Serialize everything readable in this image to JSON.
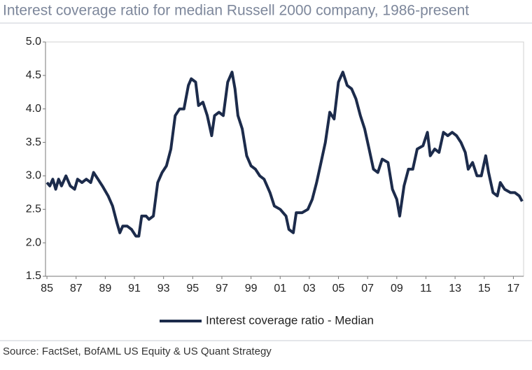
{
  "chart_data": {
    "type": "line",
    "title": "Interest coverage ratio for median Russell 2000 company, 1986-present",
    "source": "Source: FactSet, BofAML US Equity & US Quant Strategy",
    "x": [
      1985.0,
      1985.2,
      1985.4,
      1985.6,
      1985.8,
      1986.0,
      1986.3,
      1986.6,
      1986.9,
      1987.1,
      1987.4,
      1987.7,
      1988.0,
      1988.2,
      1988.5,
      1988.8,
      1989.2,
      1989.5,
      1989.8,
      1990.0,
      1990.2,
      1990.5,
      1990.8,
      1991.1,
      1991.3,
      1991.5,
      1991.8,
      1992.0,
      1992.3,
      1992.6,
      1992.9,
      1993.2,
      1993.5,
      1993.8,
      1994.1,
      1994.4,
      1994.7,
      1994.9,
      1995.2,
      1995.4,
      1995.7,
      1996.0,
      1996.3,
      1996.5,
      1996.8,
      1997.1,
      1997.4,
      1997.7,
      1997.9,
      1998.1,
      1998.4,
      1998.7,
      1999.0,
      1999.3,
      1999.6,
      1999.9,
      2000.3,
      2000.6,
      2001.0,
      2001.4,
      2001.6,
      2001.9,
      2002.1,
      2002.5,
      2002.9,
      2003.2,
      2003.5,
      2003.8,
      2004.1,
      2004.4,
      2004.7,
      2005.0,
      2005.3,
      2005.6,
      2005.9,
      2006.2,
      2006.5,
      2006.8,
      2007.1,
      2007.4,
      2007.7,
      2008.0,
      2008.4,
      2008.7,
      2009.0,
      2009.2,
      2009.5,
      2009.8,
      2010.1,
      2010.4,
      2010.8,
      2011.1,
      2011.3,
      2011.6,
      2011.9,
      2012.2,
      2012.5,
      2012.8,
      2013.1,
      2013.4,
      2013.7,
      2013.9,
      2014.2,
      2014.5,
      2014.8,
      2015.1,
      2015.3,
      2015.6,
      2015.9,
      2016.1,
      2016.4,
      2016.8,
      2017.1,
      2017.4,
      2017.6
    ],
    "series": [
      {
        "name": "Interest coverage ratio - Median",
        "color": "#1c2b4b",
        "values": [
          2.9,
          2.85,
          2.95,
          2.8,
          2.95,
          2.85,
          3.0,
          2.85,
          2.8,
          2.95,
          2.9,
          2.95,
          2.9,
          3.05,
          2.95,
          2.85,
          2.7,
          2.55,
          2.3,
          2.15,
          2.25,
          2.25,
          2.2,
          2.1,
          2.1,
          2.4,
          2.4,
          2.35,
          2.4,
          2.9,
          3.05,
          3.15,
          3.4,
          3.9,
          4.0,
          4.0,
          4.35,
          4.45,
          4.4,
          4.05,
          4.1,
          3.9,
          3.6,
          3.9,
          3.95,
          3.9,
          4.4,
          4.55,
          4.3,
          3.9,
          3.7,
          3.3,
          3.15,
          3.1,
          3.0,
          2.95,
          2.75,
          2.55,
          2.5,
          2.4,
          2.2,
          2.15,
          2.45,
          2.45,
          2.5,
          2.65,
          2.9,
          3.2,
          3.5,
          3.95,
          3.85,
          4.4,
          4.55,
          4.35,
          4.3,
          4.15,
          3.9,
          3.7,
          3.4,
          3.1,
          3.05,
          3.25,
          3.2,
          2.8,
          2.65,
          2.4,
          2.85,
          3.1,
          3.1,
          3.4,
          3.45,
          3.65,
          3.3,
          3.4,
          3.35,
          3.65,
          3.6,
          3.65,
          3.6,
          3.5,
          3.35,
          3.1,
          3.2,
          3.0,
          3.0,
          3.3,
          3.05,
          2.75,
          2.7,
          2.9,
          2.8,
          2.75,
          2.75,
          2.7,
          2.62
        ]
      }
    ],
    "xlim": [
      1984.9,
      2017.7
    ],
    "xticks": [
      {
        "value": 1985,
        "label": "85"
      },
      {
        "value": 1987,
        "label": "87"
      },
      {
        "value": 1989,
        "label": "89"
      },
      {
        "value": 1991,
        "label": "91"
      },
      {
        "value": 1993,
        "label": "93"
      },
      {
        "value": 1995,
        "label": "95"
      },
      {
        "value": 1997,
        "label": "97"
      },
      {
        "value": 1999,
        "label": "99"
      },
      {
        "value": 2001,
        "label": "01"
      },
      {
        "value": 2003,
        "label": "03"
      },
      {
        "value": 2005,
        "label": "05"
      },
      {
        "value": 2007,
        "label": "07"
      },
      {
        "value": 2009,
        "label": "09"
      },
      {
        "value": 2011,
        "label": "11"
      },
      {
        "value": 2013,
        "label": "13"
      },
      {
        "value": 2015,
        "label": "15"
      },
      {
        "value": 2017,
        "label": "17"
      }
    ],
    "ylim": [
      1.5,
      5
    ],
    "yticks": [
      1.5,
      {
        "value": 2,
        "label": "2.0"
      },
      2.5,
      {
        "value": 3,
        "label": "3.0"
      },
      3.5,
      {
        "value": 4,
        "label": "4.0"
      },
      4.5,
      {
        "value": 5,
        "label": "5.0"
      }
    ],
    "grid": false,
    "legend": "bottom"
  }
}
